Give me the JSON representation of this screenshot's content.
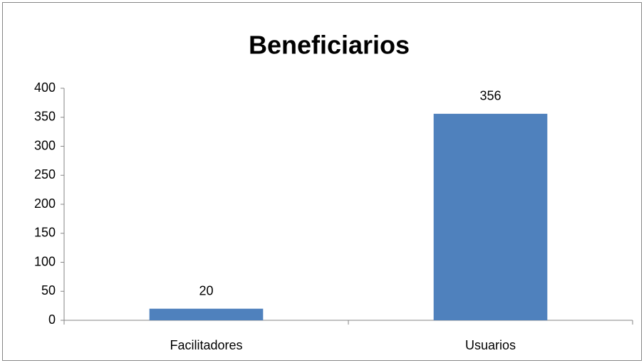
{
  "chart_data": {
    "type": "bar",
    "title": "Beneficiarios",
    "categories": [
      "Facilitadores",
      "Usuarios"
    ],
    "values": [
      20,
      356
    ],
    "color": "#4f81bd",
    "ylim": [
      0,
      400
    ],
    "yticks": [
      0,
      50,
      100,
      150,
      200,
      250,
      300,
      350,
      400
    ],
    "grid": false
  }
}
